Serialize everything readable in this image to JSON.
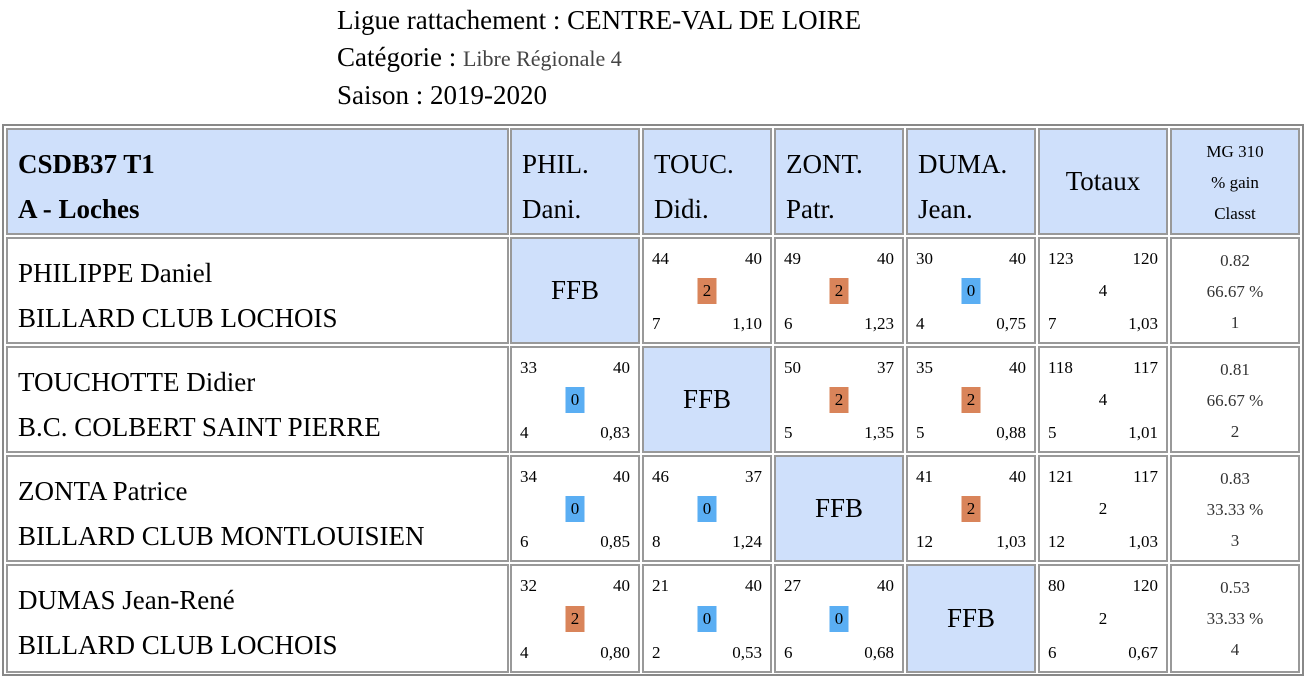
{
  "header": {
    "ligue_label": "Ligue rattachement : ",
    "ligue_value": "CENTRE-VAL DE LOIRE",
    "categorie_label": "Catégorie : ",
    "categorie_value": "Libre Régionale 4",
    "saison_label": "Saison : ",
    "saison_value": "2019-2020"
  },
  "table": {
    "team_line1": "CSDB37 T1",
    "team_line2": "A - Loches",
    "col_headers": [
      {
        "l1": "PHIL.",
        "l2": "Dani."
      },
      {
        "l1": "TOUC.",
        "l2": "Didi."
      },
      {
        "l1": "ZONT.",
        "l2": "Patr."
      },
      {
        "l1": "DUMA.",
        "l2": "Jean."
      }
    ],
    "totaux_label": "Totaux",
    "mg_header": [
      "MG 310",
      "% gain",
      "Classt"
    ],
    "ffb_label": "FFB",
    "rows": [
      {
        "name": "PHILIPPE Daniel",
        "club": "BILLARD CLUB LOCHOIS",
        "matches": [
          null,
          {
            "pts": "44",
            "dist": "40",
            "score": "2",
            "rep": "7",
            "avg": "1,10"
          },
          {
            "pts": "49",
            "dist": "40",
            "score": "2",
            "rep": "6",
            "avg": "1,23"
          },
          {
            "pts": "30",
            "dist": "40",
            "score": "0",
            "rep": "4",
            "avg": "0,75"
          }
        ],
        "totals": {
          "pts": "123",
          "dist": "120",
          "score": "4",
          "rep": "7",
          "avg": "1,03"
        },
        "stats": {
          "mg": "0.82",
          "gain": "66.67 %",
          "rank": "1"
        }
      },
      {
        "name": "TOUCHOTTE Didier",
        "club": "B.C. COLBERT SAINT PIERRE",
        "matches": [
          {
            "pts": "33",
            "dist": "40",
            "score": "0",
            "rep": "4",
            "avg": "0,83"
          },
          null,
          {
            "pts": "50",
            "dist": "37",
            "score": "2",
            "rep": "5",
            "avg": "1,35"
          },
          {
            "pts": "35",
            "dist": "40",
            "score": "2",
            "rep": "5",
            "avg": "0,88"
          }
        ],
        "totals": {
          "pts": "118",
          "dist": "117",
          "score": "4",
          "rep": "5",
          "avg": "1,01"
        },
        "stats": {
          "mg": "0.81",
          "gain": "66.67 %",
          "rank": "2"
        }
      },
      {
        "name": "ZONTA Patrice",
        "club": "BILLARD CLUB MONTLOUISIEN",
        "matches": [
          {
            "pts": "34",
            "dist": "40",
            "score": "0",
            "rep": "6",
            "avg": "0,85"
          },
          {
            "pts": "46",
            "dist": "37",
            "score": "0",
            "rep": "8",
            "avg": "1,24"
          },
          null,
          {
            "pts": "41",
            "dist": "40",
            "score": "2",
            "rep": "12",
            "avg": "1,03"
          }
        ],
        "totals": {
          "pts": "121",
          "dist": "117",
          "score": "2",
          "rep": "12",
          "avg": "1,03"
        },
        "stats": {
          "mg": "0.83",
          "gain": "33.33 %",
          "rank": "3"
        }
      },
      {
        "name": "DUMAS Jean-René",
        "club": "BILLARD CLUB LOCHOIS",
        "matches": [
          {
            "pts": "32",
            "dist": "40",
            "score": "2",
            "rep": "4",
            "avg": "0,80"
          },
          {
            "pts": "21",
            "dist": "40",
            "score": "0",
            "rep": "2",
            "avg": "0,53"
          },
          {
            "pts": "27",
            "dist": "40",
            "score": "0",
            "rep": "6",
            "avg": "0,68"
          },
          null
        ],
        "totals": {
          "pts": "80",
          "dist": "120",
          "score": "2",
          "rep": "6",
          "avg": "0,67"
        },
        "stats": {
          "mg": "0.53",
          "gain": "33.33 %",
          "rank": "4"
        }
      }
    ]
  },
  "colors": {
    "header_bg": "#cfe0fb",
    "win_badge": "#d9845a",
    "loss_badge": "#5aaef3"
  }
}
